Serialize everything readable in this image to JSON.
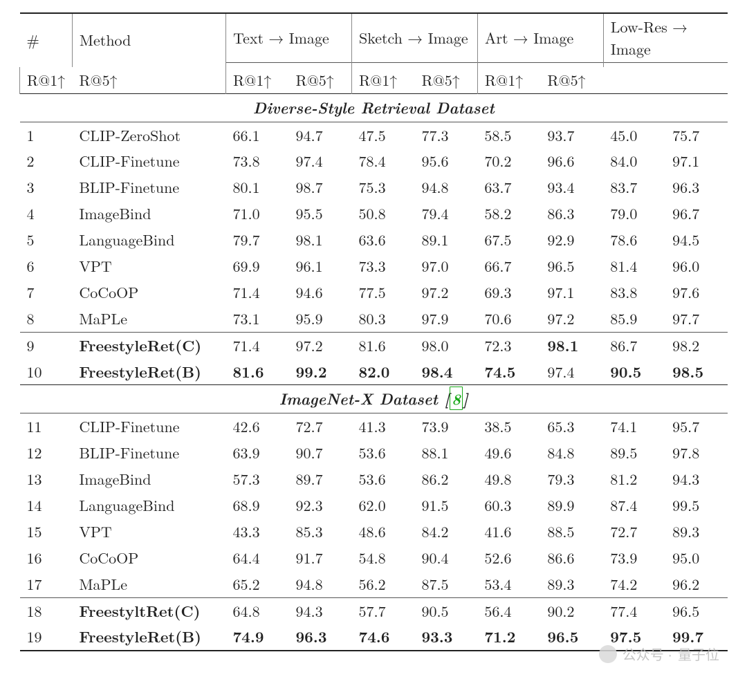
{
  "colors": {
    "text": "#222222",
    "rule_heavy": "#222222",
    "rule_light": "#555555",
    "vsep": "#888888",
    "ref_green": "#18a818",
    "background": "#ffffff",
    "watermark": "#bdbdbd"
  },
  "typography": {
    "base_fontsize_pt": 16,
    "bold_weight": 700,
    "italic_sections": true
  },
  "header": {
    "num_symbol": "#",
    "method_label": "Method",
    "groups": [
      {
        "title": "Text → Image",
        "metrics": [
          "R@1↑",
          "R@5↑"
        ]
      },
      {
        "title": "Sketch → Image",
        "metrics": [
          "R@1↑",
          "R@5↑"
        ]
      },
      {
        "title": "Art → Image",
        "metrics": [
          "R@1↑",
          "R@5↑"
        ]
      },
      {
        "title": "Low-Res → Image",
        "metrics": [
          "R@1↑",
          "R@5↑"
        ]
      }
    ]
  },
  "sections": [
    {
      "title_html": "Diverse-Style Retrieval Dataset",
      "ref": null,
      "rows": [
        {
          "n": "1",
          "method": "CLIP-ZeroShot",
          "method_bold": false,
          "v": [
            "66.1",
            "94.7",
            "47.5",
            "77.3",
            "58.5",
            "93.7",
            "45.0",
            "75.7"
          ],
          "bold": [
            0,
            0,
            0,
            0,
            0,
            0,
            0,
            0
          ]
        },
        {
          "n": "2",
          "method": "CLIP-Finetune",
          "method_bold": false,
          "v": [
            "73.8",
            "97.4",
            "78.4",
            "95.6",
            "70.2",
            "96.6",
            "84.0",
            "97.1"
          ],
          "bold": [
            0,
            0,
            0,
            0,
            0,
            0,
            0,
            0
          ]
        },
        {
          "n": "3",
          "method": "BLIP-Finetune",
          "method_bold": false,
          "v": [
            "80.1",
            "98.7",
            "75.3",
            "94.8",
            "63.7",
            "93.4",
            "83.7",
            "96.3"
          ],
          "bold": [
            0,
            0,
            0,
            0,
            0,
            0,
            0,
            0
          ]
        },
        {
          "n": "4",
          "method": "ImageBind",
          "method_bold": false,
          "v": [
            "71.0",
            "95.5",
            "50.8",
            "79.4",
            "58.2",
            "86.3",
            "79.0",
            "96.7"
          ],
          "bold": [
            0,
            0,
            0,
            0,
            0,
            0,
            0,
            0
          ]
        },
        {
          "n": "5",
          "method": "LanguageBind",
          "method_bold": false,
          "v": [
            "79.7",
            "98.1",
            "63.6",
            "89.1",
            "67.5",
            "92.9",
            "78.6",
            "94.5"
          ],
          "bold": [
            0,
            0,
            0,
            0,
            0,
            0,
            0,
            0
          ]
        },
        {
          "n": "6",
          "method": "VPT",
          "method_bold": false,
          "v": [
            "69.9",
            "96.1",
            "73.3",
            "97.0",
            "66.7",
            "96.5",
            "81.4",
            "96.0"
          ],
          "bold": [
            0,
            0,
            0,
            0,
            0,
            0,
            0,
            0
          ]
        },
        {
          "n": "7",
          "method": "CoCoOP",
          "method_bold": false,
          "v": [
            "71.4",
            "94.6",
            "77.5",
            "97.2",
            "69.3",
            "97.1",
            "83.8",
            "97.6"
          ],
          "bold": [
            0,
            0,
            0,
            0,
            0,
            0,
            0,
            0
          ]
        },
        {
          "n": "8",
          "method": "MaPLe",
          "method_bold": false,
          "v": [
            "73.1",
            "95.9",
            "80.3",
            "97.9",
            "70.6",
            "97.2",
            "85.9",
            "97.7"
          ],
          "bold": [
            0,
            0,
            0,
            0,
            0,
            0,
            0,
            0
          ]
        },
        {
          "hr": "thin"
        },
        {
          "n": "9",
          "method": "FreestyleRet(C)",
          "method_bold": true,
          "v": [
            "71.4",
            "97.2",
            "81.6",
            "98.0",
            "72.3",
            "98.1",
            "86.7",
            "98.2"
          ],
          "bold": [
            0,
            0,
            0,
            0,
            0,
            1,
            0,
            0
          ]
        },
        {
          "n": "10",
          "method": "FreestyleRet(B)",
          "method_bold": true,
          "v": [
            "81.6",
            "99.2",
            "82.0",
            "98.4",
            "74.5",
            "97.4",
            "90.5",
            "98.5"
          ],
          "bold": [
            1,
            1,
            1,
            1,
            1,
            0,
            1,
            1
          ]
        }
      ]
    },
    {
      "title_html": "ImageNet-X Dataset",
      "ref": "8",
      "rows": [
        {
          "n": "11",
          "method": "CLIP-Finetune",
          "method_bold": false,
          "v": [
            "42.6",
            "72.7",
            "41.3",
            "73.9",
            "38.5",
            "65.3",
            "74.1",
            "95.7"
          ],
          "bold": [
            0,
            0,
            0,
            0,
            0,
            0,
            0,
            0
          ]
        },
        {
          "n": "12",
          "method": "BLIP-Finetune",
          "method_bold": false,
          "v": [
            "63.9",
            "90.7",
            "53.6",
            "88.1",
            "49.6",
            "84.8",
            "89.5",
            "97.8"
          ],
          "bold": [
            0,
            0,
            0,
            0,
            0,
            0,
            0,
            0
          ]
        },
        {
          "n": "13",
          "method": "ImageBind",
          "method_bold": false,
          "v": [
            "57.3",
            "89.7",
            "53.6",
            "86.2",
            "49.8",
            "79.3",
            "81.2",
            "94.3"
          ],
          "bold": [
            0,
            0,
            0,
            0,
            0,
            0,
            0,
            0
          ]
        },
        {
          "n": "14",
          "method": "LanguageBind",
          "method_bold": false,
          "v": [
            "68.9",
            "92.3",
            "62.0",
            "91.5",
            "60.3",
            "89.9",
            "87.4",
            "99.5"
          ],
          "bold": [
            0,
            0,
            0,
            0,
            0,
            0,
            0,
            0
          ]
        },
        {
          "n": "15",
          "method": "VPT",
          "method_bold": false,
          "v": [
            "43.3",
            "85.3",
            "48.6",
            "84.2",
            "41.6",
            "88.5",
            "72.7",
            "89.3"
          ],
          "bold": [
            0,
            0,
            0,
            0,
            0,
            0,
            0,
            0
          ]
        },
        {
          "n": "16",
          "method": "CoCoOP",
          "method_bold": false,
          "v": [
            "64.4",
            "91.7",
            "54.8",
            "90.4",
            "52.6",
            "86.6",
            "73.9",
            "95.0"
          ],
          "bold": [
            0,
            0,
            0,
            0,
            0,
            0,
            0,
            0
          ]
        },
        {
          "n": "17",
          "method": "MaPLe",
          "method_bold": false,
          "v": [
            "65.2",
            "94.8",
            "56.2",
            "87.5",
            "53.4",
            "89.3",
            "74.2",
            "96.2"
          ],
          "bold": [
            0,
            0,
            0,
            0,
            0,
            0,
            0,
            0
          ]
        },
        {
          "hr": "thin"
        },
        {
          "n": "18",
          "method": "FreestyltRet(C)",
          "method_bold": true,
          "v": [
            "64.8",
            "94.3",
            "57.7",
            "90.5",
            "56.4",
            "90.2",
            "77.4",
            "96.5"
          ],
          "bold": [
            0,
            0,
            0,
            0,
            0,
            0,
            0,
            0
          ]
        },
        {
          "n": "19",
          "method": "FreestyleRet(B)",
          "method_bold": true,
          "v": [
            "74.9",
            "96.3",
            "74.6",
            "93.3",
            "71.2",
            "96.5",
            "97.5",
            "99.7"
          ],
          "bold": [
            1,
            1,
            1,
            1,
            1,
            1,
            1,
            1
          ]
        }
      ]
    }
  ],
  "watermark": {
    "prefix": "公众号 · ",
    "name": "量子位"
  }
}
